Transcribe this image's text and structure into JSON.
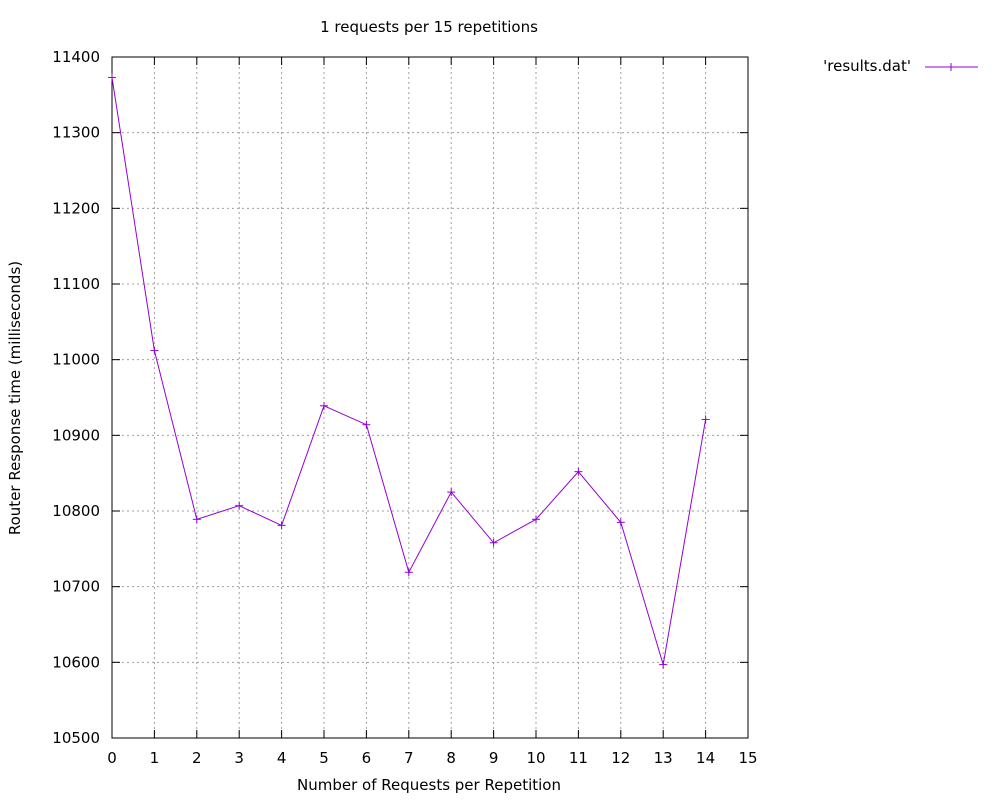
{
  "chart_data": {
    "type": "line",
    "title": "1 requests per 15 repetitions",
    "xlabel": "Number of Requests per Repetition",
    "ylabel": "Router Response time (milliseconds)",
    "xlim": [
      0,
      15
    ],
    "ylim": [
      10500,
      11400
    ],
    "x_ticks": [
      0,
      1,
      2,
      3,
      4,
      5,
      6,
      7,
      8,
      9,
      10,
      11,
      12,
      13,
      14,
      15
    ],
    "y_ticks": [
      10500,
      10600,
      10700,
      10800,
      10900,
      11000,
      11100,
      11200,
      11300,
      11400
    ],
    "grid": true,
    "legend_position": "top-right-outside",
    "series": [
      {
        "name": "'results.dat'",
        "color": "#9400d3",
        "marker": "plus",
        "x": [
          0,
          1,
          2,
          3,
          4,
          5,
          6,
          7,
          8,
          9,
          10,
          11,
          12,
          13,
          14
        ],
        "values": [
          11373,
          11012,
          10789,
          10807,
          10781,
          10939,
          10914,
          10719,
          10825,
          10758,
          10789,
          10852,
          10785,
          10597,
          10921
        ]
      }
    ]
  }
}
